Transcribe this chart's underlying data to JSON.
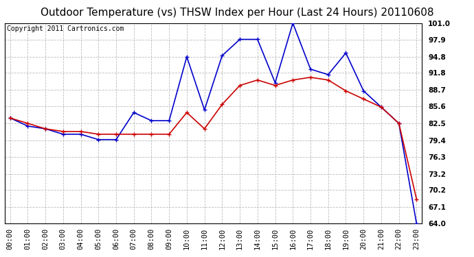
{
  "title": "Outdoor Temperature (vs) THSW Index per Hour (Last 24 Hours) 20110608",
  "copyright": "Copyright 2011 Cartronics.com",
  "hours": [
    "00:00",
    "01:00",
    "02:00",
    "03:00",
    "04:00",
    "05:00",
    "06:00",
    "07:00",
    "08:00",
    "09:00",
    "10:00",
    "11:00",
    "12:00",
    "13:00",
    "14:00",
    "15:00",
    "16:00",
    "17:00",
    "18:00",
    "19:00",
    "20:00",
    "21:00",
    "22:00",
    "23:00"
  ],
  "temp": [
    83.5,
    82.5,
    81.5,
    81.0,
    81.0,
    80.5,
    80.5,
    80.5,
    80.5,
    80.5,
    84.5,
    81.5,
    86.0,
    89.5,
    90.5,
    89.5,
    90.5,
    91.0,
    90.5,
    88.5,
    87.0,
    85.5,
    82.5,
    68.5
  ],
  "thsw": [
    83.5,
    82.0,
    81.5,
    80.5,
    80.5,
    79.5,
    79.5,
    84.5,
    83.0,
    83.0,
    94.8,
    85.0,
    95.0,
    98.0,
    98.0,
    90.0,
    101.0,
    92.5,
    91.5,
    95.5,
    88.5,
    85.5,
    82.5,
    64.0
  ],
  "temp_color": "#cc0000",
  "thsw_color": "#0000cc",
  "bg_color": "#ffffff",
  "grid_color": "#aaaaaa",
  "y_min": 64.0,
  "y_max": 101.0,
  "y_ticks": [
    64.0,
    67.1,
    70.2,
    73.2,
    76.3,
    79.4,
    82.5,
    85.6,
    88.7,
    91.8,
    94.8,
    97.9,
    101.0
  ],
  "title_fontsize": 11,
  "copyright_fontsize": 7,
  "tick_fontsize": 7.5,
  "marker_size": 4,
  "line_width": 1.2
}
